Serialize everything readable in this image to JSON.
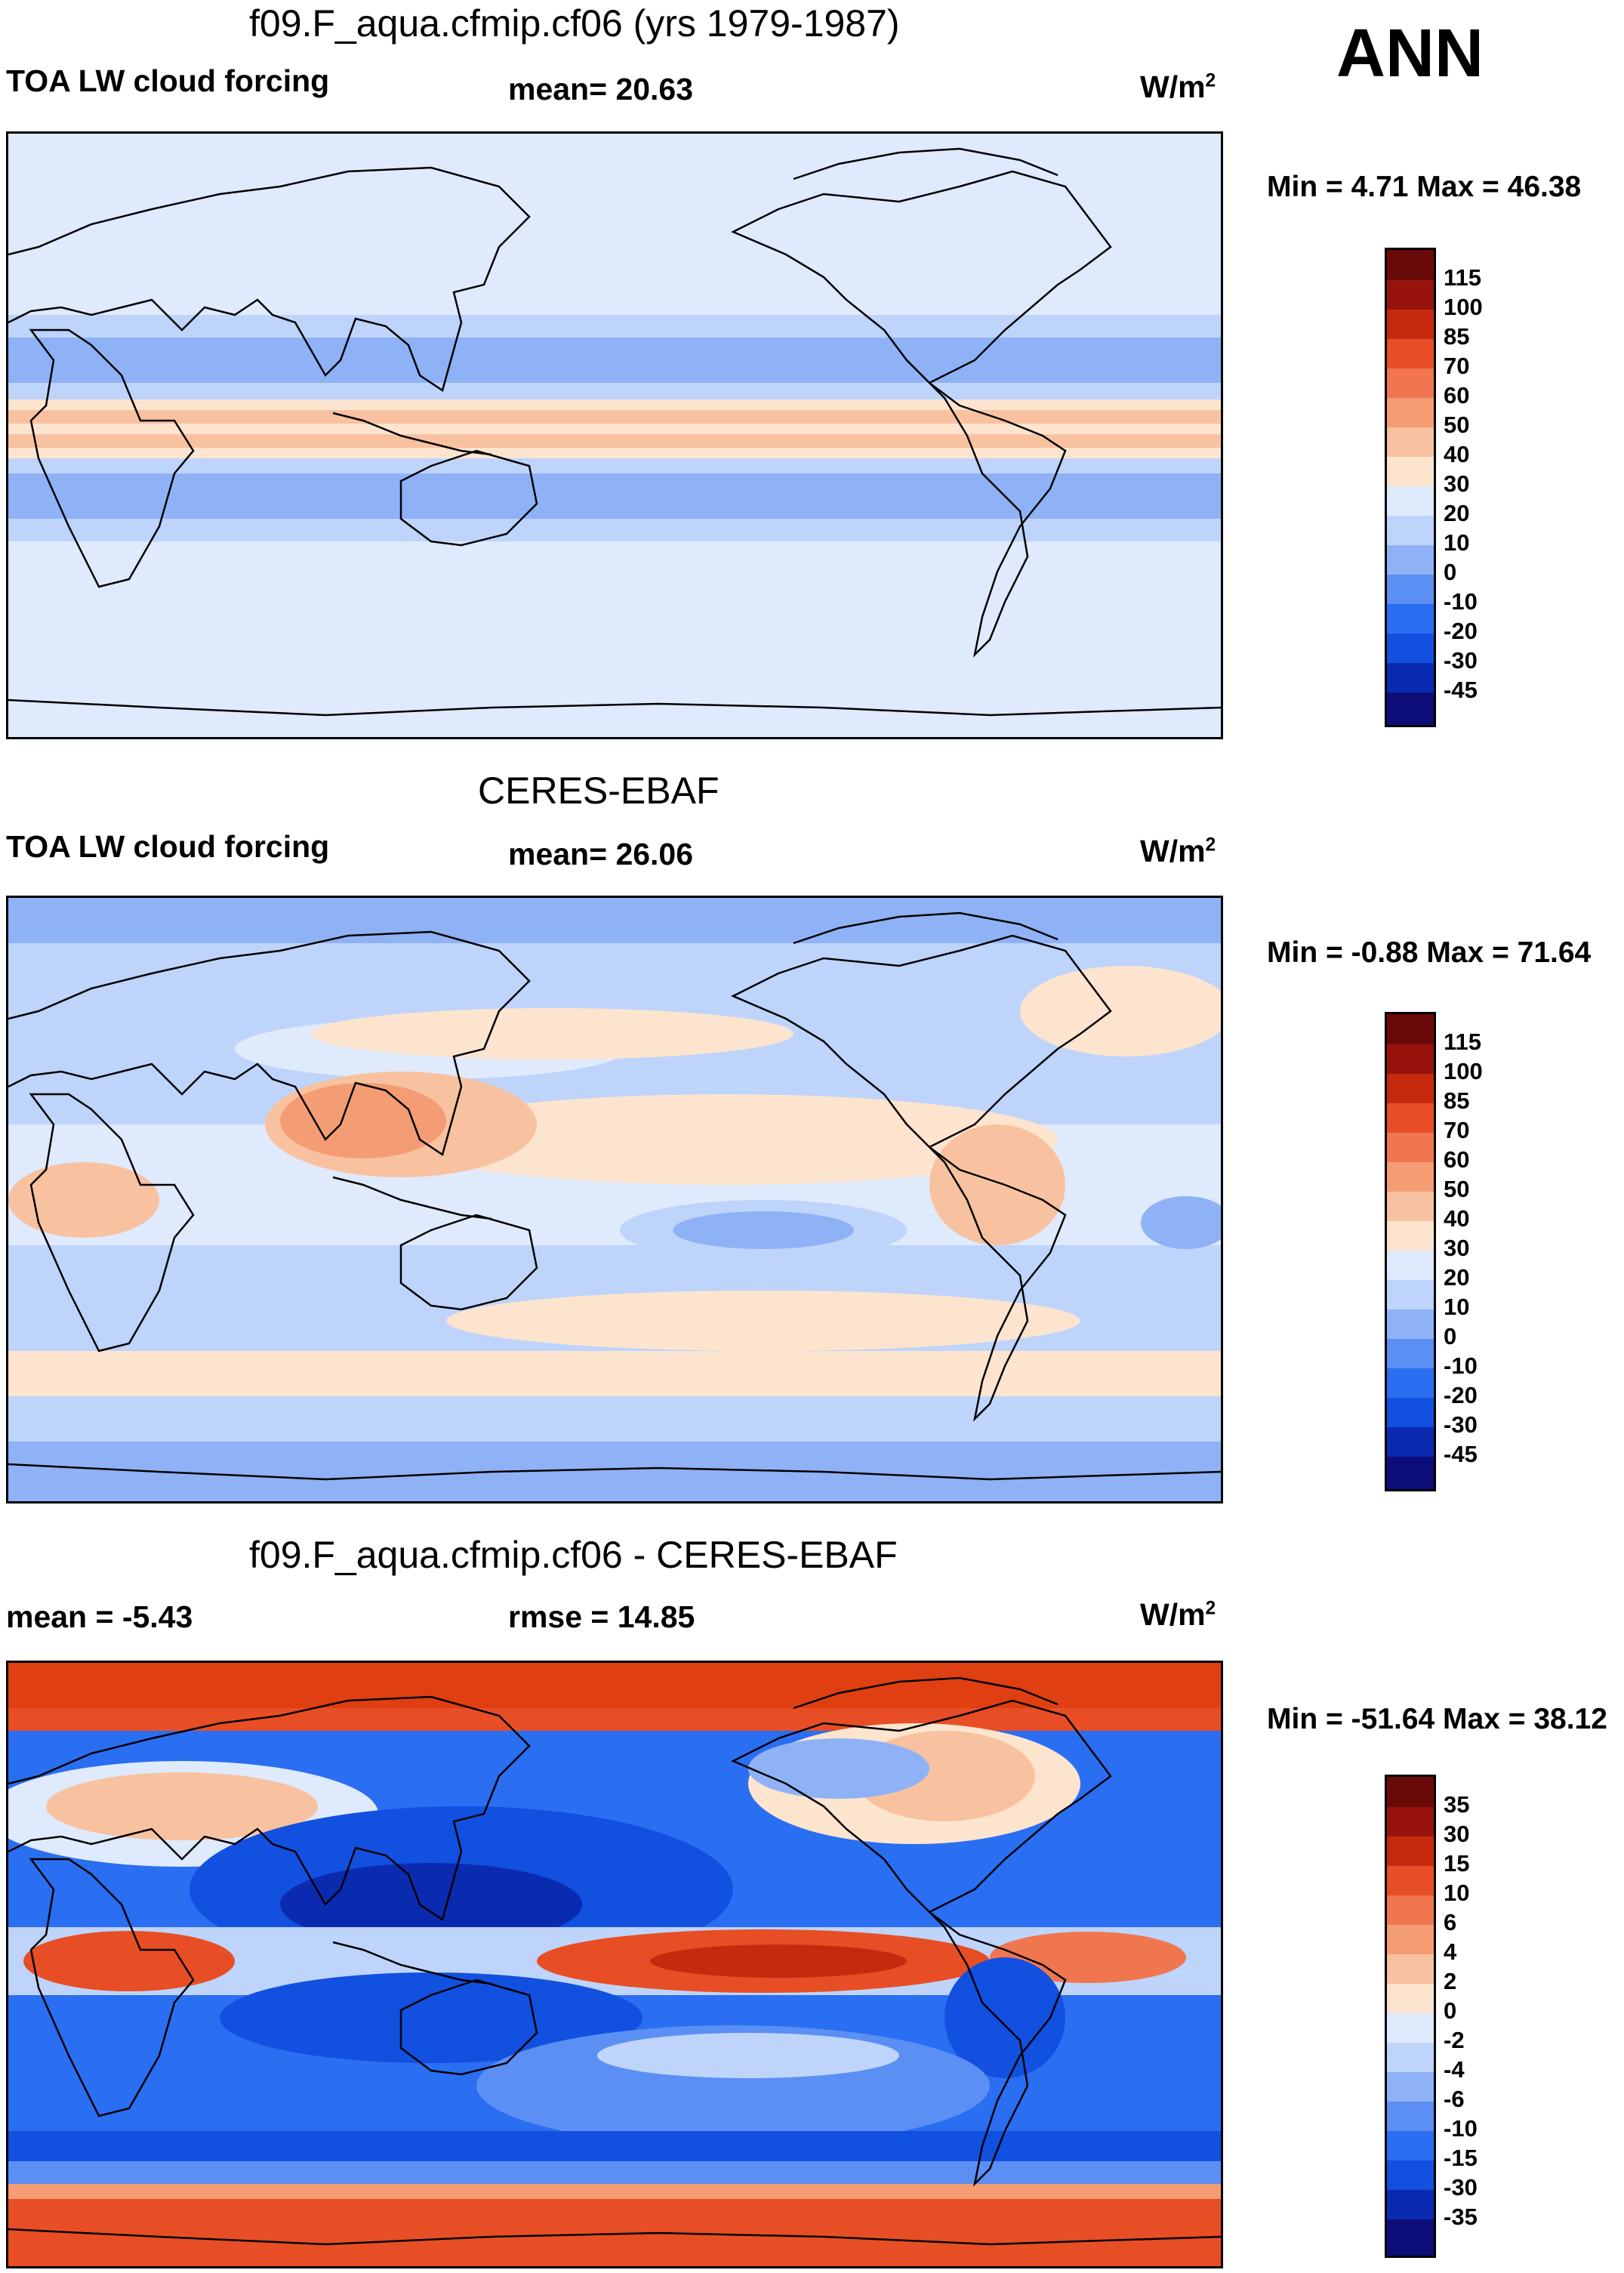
{
  "season": "ANN",
  "colors": {
    "forcing": [
      "#0d0d7a",
      "#0a2bb0",
      "#1250e0",
      "#2a6ef2",
      "#5b8ff4",
      "#8fb2f6",
      "#bed4fa",
      "#dfeafd",
      "#fde4cf",
      "#f8c2a0",
      "#f49d74",
      "#f0764f",
      "#e84e25",
      "#c62a0e",
      "#97130c",
      "#6a0a08"
    ],
    "difference": [
      "#0d0d7a",
      "#0a2bb0",
      "#1250e0",
      "#2a6ef2",
      "#5b8ff4",
      "#8fb2f6",
      "#bed4fa",
      "#dfeafd",
      "#fde4cf",
      "#f8c2a0",
      "#f49d74",
      "#f0764f",
      "#e84e25",
      "#c62a0e",
      "#97130c",
      "#6a0a08"
    ]
  },
  "panels": [
    {
      "title": "f09.F_aqua.cfmip.cf06 (yrs 1979-1987)",
      "left": "TOA LW cloud forcing",
      "center": "mean=  20.63",
      "units": "W/m",
      "units_sup": "2",
      "minmax": "Min =   4.71 Max =  46.38",
      "colorbar_labels": [
        "115",
        "100",
        "85",
        "70",
        "60",
        "50",
        "40",
        "30",
        "20",
        "10",
        "0",
        "-10",
        "-20",
        "-30",
        "-45"
      ]
    },
    {
      "title": "CERES-EBAF",
      "left": "TOA LW cloud forcing",
      "center": "mean=  26.06",
      "units": "W/m",
      "units_sup": "2",
      "minmax": "Min =  -0.88 Max =  71.64",
      "colorbar_labels": [
        "115",
        "100",
        "85",
        "70",
        "60",
        "50",
        "40",
        "30",
        "20",
        "10",
        "0",
        "-10",
        "-20",
        "-30",
        "-45"
      ]
    },
    {
      "title": "f09.F_aqua.cfmip.cf06 - CERES-EBAF",
      "left": "mean =  -5.43",
      "center": "rmse =  14.85",
      "units": "W/m",
      "units_sup": "2",
      "minmax": "Min = -51.64 Max =  38.12",
      "colorbar_labels": [
        "35",
        "30",
        "15",
        "10",
        "6",
        "4",
        "2",
        "0",
        "-2",
        "-4",
        "-6",
        "-10",
        "-15",
        "-30",
        "-35"
      ]
    }
  ]
}
